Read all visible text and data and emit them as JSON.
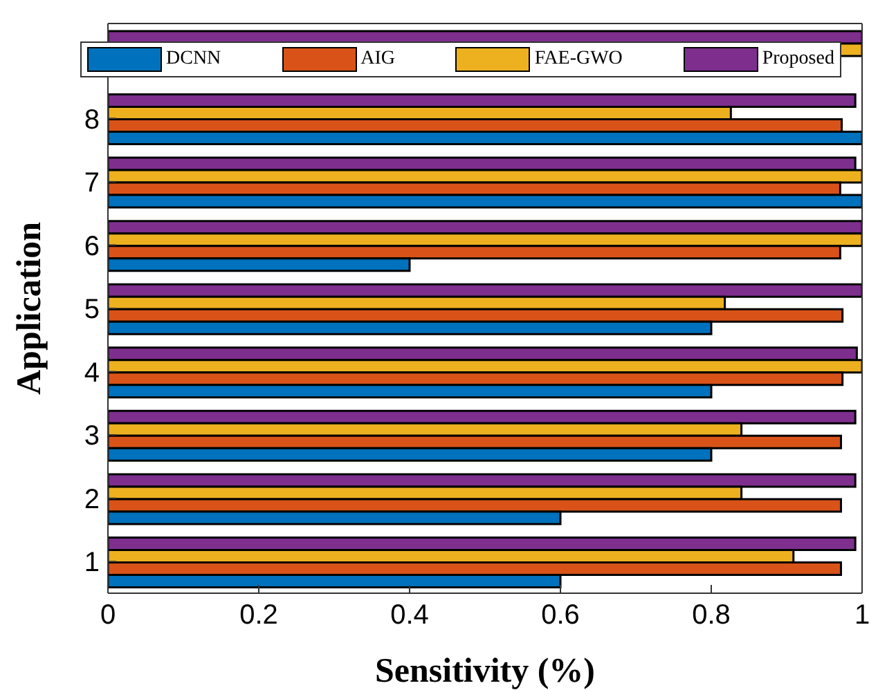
{
  "chart_data": {
    "type": "bar",
    "orientation": "horizontal",
    "xlabel": "Sensitivity (%)",
    "ylabel": "Application",
    "categories": [
      null,
      "8",
      "7",
      "6",
      "5",
      "4",
      "3",
      "2",
      "1"
    ],
    "series": [
      {
        "name": "DCNN",
        "color": "#0072bd",
        "values": [
          null,
          1.0,
          1.0,
          0.4,
          0.8,
          0.8,
          0.8,
          0.6,
          0.6
        ]
      },
      {
        "name": "AIG",
        "color": "#d95319",
        "values": [
          null,
          0.973,
          0.971,
          0.971,
          0.974,
          0.974,
          0.972,
          0.972,
          0.972
        ]
      },
      {
        "name": "FAE-GWO",
        "color": "#edb120",
        "values": [
          1.0,
          0.826,
          1.0,
          1.0,
          0.818,
          1.0,
          0.84,
          0.84,
          0.909
        ]
      },
      {
        "name": "Proposed",
        "color": "#7e2f8e",
        "values": [
          1.0,
          0.991,
          0.991,
          1.0,
          1.0,
          0.993,
          0.991,
          0.991,
          0.991
        ]
      }
    ],
    "xlim": [
      0,
      1
    ],
    "xticks": [
      0,
      0.2,
      0.4,
      0.6,
      0.8,
      1
    ],
    "grid": false,
    "legend": "top"
  }
}
